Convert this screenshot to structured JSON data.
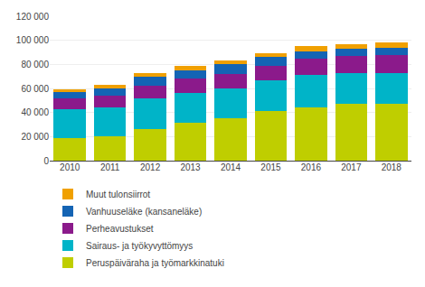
{
  "chart_data": {
    "type": "bar",
    "stacked": true,
    "categories": [
      "2010",
      "2011",
      "2012",
      "2013",
      "2014",
      "2015",
      "2016",
      "2017",
      "2018"
    ],
    "series": [
      {
        "name": "Peruspäiväraha ja työmarkkinatuki",
        "color": "#bfce00",
        "values": [
          18500,
          20500,
          26500,
          31500,
          35000,
          41000,
          44500,
          47000,
          47500
        ]
      },
      {
        "name": "Sairaus- ja työkyvyttömyys",
        "color": "#00b4c8",
        "values": [
          24000,
          23500,
          25500,
          24500,
          25000,
          26000,
          27000,
          25500,
          25500
        ]
      },
      {
        "name": "Perheavustukset",
        "color": "#8b1a8b",
        "values": [
          9000,
          10000,
          10500,
          12000,
          12000,
          12000,
          13000,
          14500,
          14500
        ]
      },
      {
        "name": "Vanhuuseläke (kansaneläke)",
        "color": "#1464b4",
        "values": [
          5500,
          6000,
          7000,
          7000,
          8000,
          7000,
          6500,
          6000,
          6000
        ]
      },
      {
        "name": "Muut tulonsiirrot",
        "color": "#f0a000",
        "values": [
          2500,
          3000,
          3500,
          3500,
          3500,
          3500,
          4000,
          4000,
          4500
        ]
      }
    ],
    "ylim": [
      0,
      120000
    ],
    "yticks": [
      0,
      {
        "value": 20000,
        "label": "20 000"
      },
      {
        "value": 40000,
        "label": "40 000"
      },
      {
        "value": 60000,
        "label": "60 000"
      },
      {
        "value": 80000,
        "label": "80 000"
      },
      {
        "value": 100000,
        "label": "100 000"
      },
      {
        "value": 120000,
        "label": "120 000"
      }
    ],
    "grid": true,
    "legend": "bottom"
  }
}
